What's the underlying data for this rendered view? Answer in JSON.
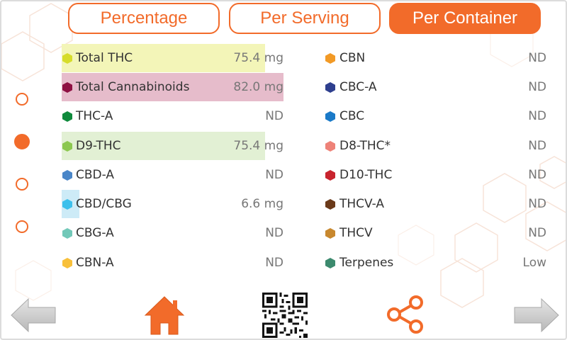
{
  "tabs": [
    {
      "label": "Percentage",
      "active": false
    },
    {
      "label": "Per Serving",
      "active": false
    },
    {
      "label": "Per Container",
      "active": true
    }
  ],
  "pager": {
    "count": 4,
    "selected_index": 1
  },
  "left_column": [
    {
      "name": "Total THC",
      "value": "75.4 mg",
      "color": "#d6dc2a",
      "highlight": "#f3f5b8"
    },
    {
      "name": "Total Cannabinoids",
      "value": "82.0 mg",
      "color": "#8e1042",
      "highlight": "#e6bccb"
    },
    {
      "name": "THC-A",
      "value": "ND",
      "color": "#0f8a3c",
      "highlight": ""
    },
    {
      "name": "D9-THC",
      "value": "75.4 mg",
      "color": "#8cc850",
      "highlight": "#e2f0d4"
    },
    {
      "name": "CBD-A",
      "value": "ND",
      "color": "#4a86c8",
      "highlight": ""
    },
    {
      "name": "CBD/CBG",
      "value": "6.6 mg",
      "color": "#3cc0ec",
      "highlight": "#cdebf7"
    },
    {
      "name": "CBG-A",
      "value": "ND",
      "color": "#72c8b8",
      "highlight": ""
    },
    {
      "name": "CBN-A",
      "value": "ND",
      "color": "#f8c03a",
      "highlight": ""
    }
  ],
  "right_column": [
    {
      "name": "CBN",
      "value": "ND",
      "color": "#f29a26"
    },
    {
      "name": "CBC-A",
      "value": "ND",
      "color": "#2e3f8e"
    },
    {
      "name": "CBC",
      "value": "ND",
      "color": "#1a7ac8"
    },
    {
      "name": "D8-THC*",
      "value": "ND",
      "color": "#ee8278"
    },
    {
      "name": "D10-THC",
      "value": "ND",
      "color": "#c8242e"
    },
    {
      "name": "THCV-A",
      "value": "ND",
      "color": "#6b3a1a"
    },
    {
      "name": "THCV",
      "value": "ND",
      "color": "#c8882e"
    },
    {
      "name": "Terpenes",
      "value": "Low",
      "color": "#3c8a6e"
    }
  ],
  "bottom_bar": {
    "back_icon": "arrow-left-icon",
    "home_icon": "home-icon",
    "qr_icon": "qr-code-icon",
    "share_icon": "share-icon",
    "forward_icon": "arrow-right-icon"
  },
  "colors": {
    "accent": "#f26b2a",
    "arrow_gray": "#c8c8c8"
  }
}
